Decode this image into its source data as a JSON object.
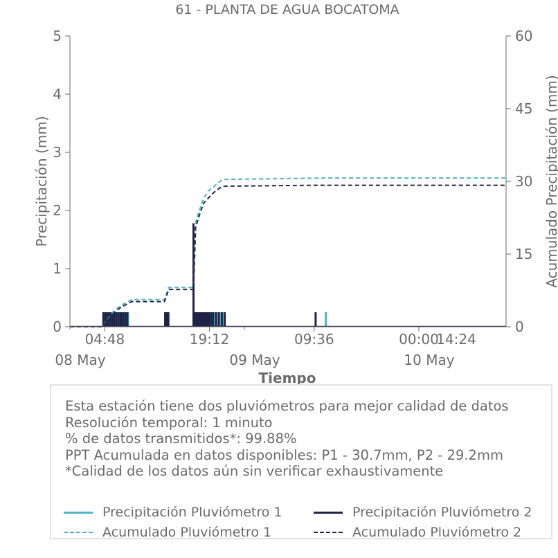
{
  "chart_data": {
    "type": "bar",
    "title": "61 - PLANTA DE AGUA BOCATOMA",
    "xlabel": "Tiempo",
    "ylabel_left": "Precipitación (mm)",
    "ylabel_right": "Acumulado Precipitación (mm)",
    "ylim_left": [
      0,
      5
    ],
    "ylim_right": [
      0,
      60
    ],
    "yticks_left": [
      "0",
      "1",
      "2",
      "3",
      "4",
      "5"
    ],
    "yticks_right": [
      "0",
      "15",
      "30",
      "45",
      "60"
    ],
    "x_range_hours": [
      0,
      60
    ],
    "x_major_ticks": [
      {
        "hour": 4.8,
        "label": "04:48"
      },
      {
        "hour": 19.2,
        "label": "19:12"
      },
      {
        "hour": 33.6,
        "label": "09:36"
      },
      {
        "hour": 48.0,
        "label": "00:00"
      },
      {
        "hour": 62.4,
        "label": "14:24"
      }
    ],
    "x_date_ticks": [
      {
        "hour": 0,
        "label": "08 May"
      },
      {
        "hour": 24,
        "label": "09 May"
      },
      {
        "hour": 48,
        "label": "10 May"
      }
    ],
    "series": [
      {
        "name": "Precipitación Pluviómetro 1",
        "kind": "bar",
        "color": "#4fb3c6",
        "x_hours": [
          4.7,
          5.0,
          5.3,
          5.6,
          5.9,
          6.2,
          6.5,
          6.8,
          7.1,
          7.4,
          7.7,
          8.0,
          13.2,
          13.4,
          13.6,
          17.0,
          17.1,
          17.2,
          17.4,
          17.6,
          17.8,
          18.0,
          18.2,
          18.4,
          18.6,
          18.8,
          19.0,
          19.3,
          19.6,
          20.0,
          20.4,
          20.8,
          21.2,
          35.2
        ],
        "values": [
          0.25,
          0.25,
          0.25,
          0.25,
          0.25,
          0.25,
          0.25,
          0.25,
          0.25,
          0.25,
          0.25,
          0.25,
          0.25,
          0.25,
          0.25,
          1.75,
          0.25,
          0.25,
          0.25,
          0.25,
          0.25,
          0.25,
          0.25,
          0.25,
          0.25,
          0.25,
          0.25,
          0.25,
          0.25,
          0.25,
          0.25,
          0.25,
          0.25,
          0.25
        ]
      },
      {
        "name": "Precipitación Pluviómetro 2",
        "kind": "bar",
        "color": "#1f2346",
        "x_hours": [
          4.6,
          4.9,
          5.2,
          5.5,
          5.8,
          6.1,
          6.4,
          6.7,
          7.0,
          7.3,
          7.6,
          7.9,
          13.1,
          13.3,
          13.5,
          17.0,
          17.1,
          17.3,
          17.5,
          17.7,
          17.9,
          18.1,
          18.3,
          18.5,
          18.7,
          18.9,
          19.1,
          19.4,
          19.7,
          20.1,
          20.5,
          20.9,
          21.3,
          33.8
        ],
        "values": [
          0.25,
          0.25,
          0.25,
          0.25,
          0.25,
          0.25,
          0.25,
          0.25,
          0.25,
          0.25,
          0.25,
          0.25,
          0.25,
          0.25,
          0.25,
          1.78,
          0.25,
          0.25,
          0.25,
          0.25,
          0.25,
          0.25,
          0.25,
          0.25,
          0.25,
          0.25,
          0.25,
          0.25,
          0.25,
          0.25,
          0.25,
          0.25,
          0.25,
          0.25
        ]
      },
      {
        "name": "Acumulado Pluviómetro 1",
        "kind": "dashed-line",
        "axis": "right",
        "color": "#4fb3c6",
        "x_hours": [
          0,
          4.5,
          5.2,
          6.0,
          7.0,
          8.5,
          13.0,
          13.6,
          17.0,
          17.3,
          17.8,
          18.4,
          19.0,
          20.0,
          21.0,
          35.2,
          60
        ],
        "values": [
          0,
          0,
          1.5,
          3.2,
          4.4,
          5.6,
          5.6,
          8.1,
          8.1,
          21.5,
          24.0,
          26.5,
          28.0,
          29.2,
          30.4,
          30.7,
          30.7
        ]
      },
      {
        "name": "Acumulado Pluviómetro 2",
        "kind": "dashed-line",
        "axis": "right",
        "color": "#1f2346",
        "x_hours": [
          0,
          4.5,
          5.2,
          6.0,
          7.0,
          8.5,
          13.0,
          13.6,
          17.0,
          17.3,
          17.8,
          18.4,
          19.0,
          20.0,
          21.0,
          33.8,
          60
        ],
        "values": [
          0,
          0,
          1.3,
          2.8,
          4.0,
          5.2,
          5.2,
          7.7,
          7.7,
          20.5,
          23.0,
          25.5,
          26.5,
          28.0,
          29.0,
          29.2,
          29.2
        ]
      }
    ]
  },
  "info": {
    "line1": "Esta estación tiene dos pluviómetros para mejor calidad de datos",
    "line2": "Resolución temporal: 1 minuto",
    "line3": "% de datos transmitidos*: 99.88%",
    "line4": "PPT Acumulada en datos disponibles: P1 - 30.7mm, P2 - 29.2mm",
    "line5": "*Calidad de los datos aún sin verificar exhaustivamente"
  },
  "legend": {
    "p1": "Precipitación Pluviómetro 1",
    "p2": "Precipitación Pluviómetro 2",
    "a1": "Acumulado Pluviómetro 1",
    "a2": "Acumulado Pluviómetro 2"
  },
  "colors": {
    "p1": "#4fb3c6",
    "p2": "#1f2346",
    "axis": "#6b6b6b"
  }
}
